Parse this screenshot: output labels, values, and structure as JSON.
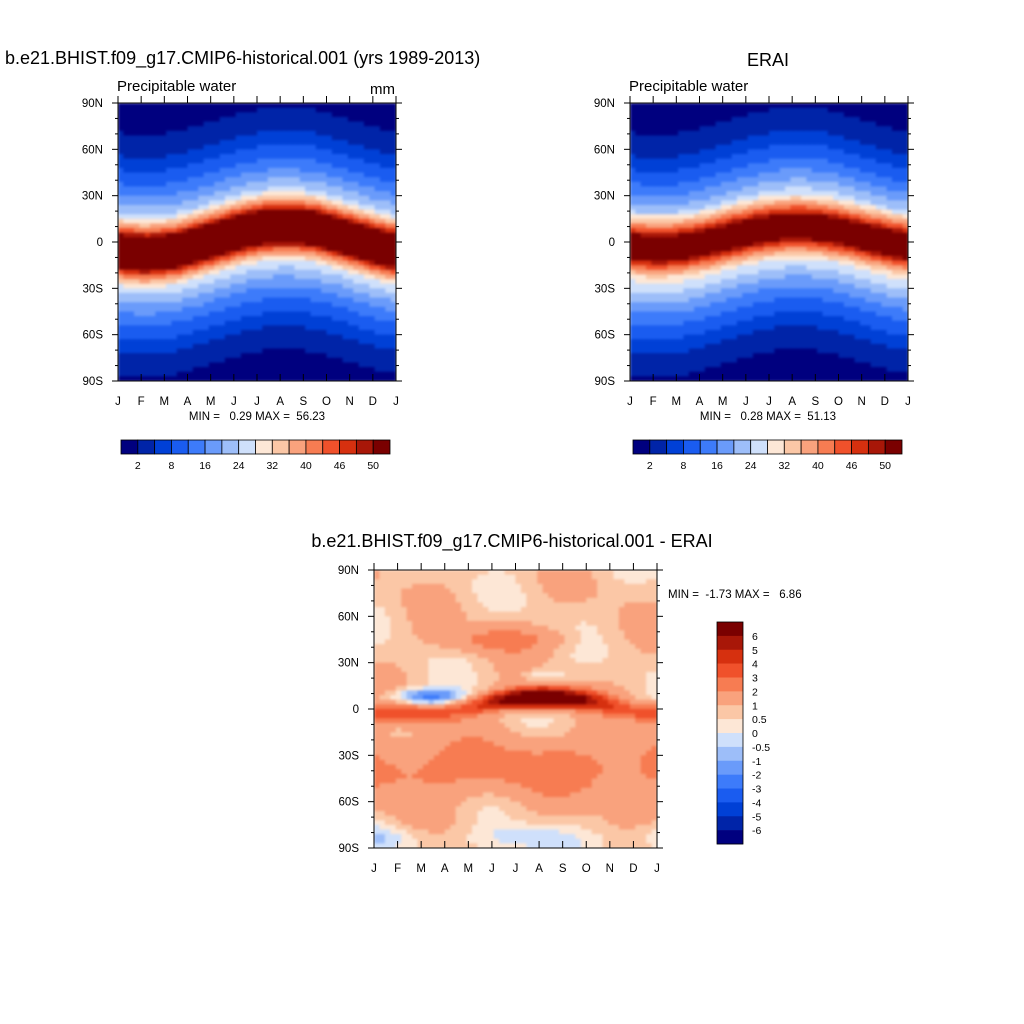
{
  "chart_data": [
    {
      "type": "heatmap",
      "title": "b.e21.BHIST.f09_g17.CMIP6-historical.001 (yrs 1989-2013)",
      "variable_label": "Precipitable water",
      "units": "mm",
      "stats_text": "MIN =   0.29 MAX =  56.23",
      "min": 0.29,
      "max": 56.23,
      "x_ticks": [
        "J",
        "F",
        "M",
        "A",
        "M",
        "J",
        "J",
        "A",
        "S",
        "O",
        "N",
        "D",
        "J"
      ],
      "y_ticks": [
        "90N",
        "60N",
        "30N",
        "0",
        "30S",
        "60S",
        "90S"
      ],
      "model": {
        "peak": 56.2,
        "pole_n": 1.5,
        "pole_s": 0.5,
        "itcz_mean": 1.5,
        "itcz_amp": 9.0,
        "itcz_phase_month": 7.2
      },
      "colorbar": {
        "levels": [
          0,
          2,
          5,
          8,
          12,
          16,
          20,
          24,
          28,
          32,
          36,
          40,
          43,
          46,
          48,
          50,
          53
        ],
        "tick_labels": [
          "2",
          "8",
          "16",
          "24",
          "32",
          "40",
          "46",
          "50"
        ],
        "colors": [
          "#00007f",
          "#0024a8",
          "#0040d6",
          "#1a5cf0",
          "#3d7bfa",
          "#6a9bfa",
          "#9dbef9",
          "#cfe0fb",
          "#fde7d6",
          "#fbc7a6",
          "#f9a27d",
          "#f77c52",
          "#f0512b",
          "#d6300f",
          "#a81708",
          "#7a0000"
        ]
      }
    },
    {
      "type": "heatmap",
      "title": "ERAI",
      "variable_label": "Precipitable water",
      "units": "",
      "stats_text": "MIN =   0.28 MAX =  51.13",
      "min": 0.28,
      "max": 51.13,
      "x_ticks": [
        "J",
        "F",
        "M",
        "A",
        "M",
        "J",
        "J",
        "A",
        "S",
        "O",
        "N",
        "D",
        "J"
      ],
      "y_ticks": [
        "90N",
        "60N",
        "30N",
        "0",
        "30S",
        "60S",
        "90S"
      ],
      "model": {
        "peak": 51.1,
        "pole_n": 1.0,
        "pole_s": 0.4,
        "itcz_mean": 3.0,
        "itcz_amp": 7.0,
        "itcz_phase_month": 7.2
      },
      "colorbar": {
        "levels": [
          0,
          2,
          5,
          8,
          12,
          16,
          20,
          24,
          28,
          32,
          36,
          40,
          43,
          46,
          48,
          50,
          53
        ],
        "tick_labels": [
          "2",
          "8",
          "16",
          "24",
          "32",
          "40",
          "46",
          "50"
        ],
        "colors": [
          "#00007f",
          "#0024a8",
          "#0040d6",
          "#1a5cf0",
          "#3d7bfa",
          "#6a9bfa",
          "#9dbef9",
          "#cfe0fb",
          "#fde7d6",
          "#fbc7a6",
          "#f9a27d",
          "#f77c52",
          "#f0512b",
          "#d6300f",
          "#a81708",
          "#7a0000"
        ]
      }
    },
    {
      "type": "heatmap",
      "title": "b.e21.BHIST.f09_g17.CMIP6-historical.001 - ERAI",
      "stats_text": "MIN =  -1.73 MAX =   6.86",
      "min": -1.73,
      "max": 6.86,
      "x_ticks": [
        "J",
        "F",
        "M",
        "A",
        "M",
        "J",
        "J",
        "A",
        "S",
        "O",
        "N",
        "D",
        "J"
      ],
      "y_ticks": [
        "90N",
        "60N",
        "30N",
        "0",
        "30S",
        "60S",
        "90S"
      ],
      "colorbar": {
        "levels": [
          -7,
          -6,
          -5,
          -4,
          -3,
          -2,
          -1,
          -0.5,
          0,
          0.5,
          1,
          2,
          3,
          4,
          5,
          6,
          7
        ],
        "tick_labels": [
          "6",
          "5",
          "4",
          "3",
          "2",
          "1",
          "0.5",
          "0",
          "-0.5",
          "-1",
          "-2",
          "-3",
          "-4",
          "-5",
          "-6"
        ],
        "colors": [
          "#00007f",
          "#0024a8",
          "#0040d6",
          "#1a5cf0",
          "#3d7bfa",
          "#6a9bfa",
          "#9dbef9",
          "#cfe0fb",
          "#fde7d6",
          "#fbc7a6",
          "#f9a27d",
          "#f77c52",
          "#f0512b",
          "#d6300f",
          "#a81708",
          "#7a0000"
        ]
      }
    }
  ]
}
